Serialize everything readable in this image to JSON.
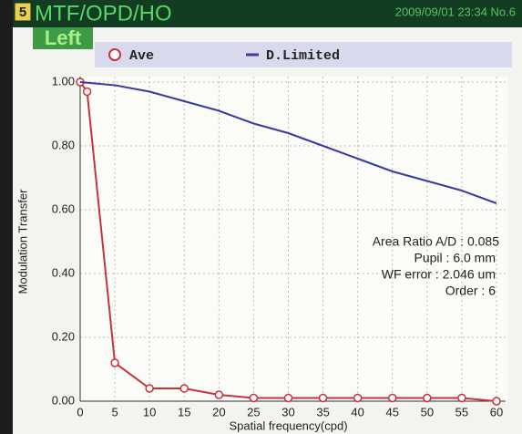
{
  "header": {
    "badge": "5",
    "title": "MTF/OPD/HO",
    "datetime": "2009/09/01 23:34 No.6",
    "eye": "Left"
  },
  "chart_data": {
    "type": "line",
    "ylabel": "Modulation Transfer",
    "xlabel": "Spatial frequency(cpd)",
    "xlim": [
      0,
      60
    ],
    "xticks": [
      0,
      5,
      10,
      15,
      20,
      25,
      30,
      35,
      40,
      45,
      50,
      55,
      60
    ],
    "ylim": [
      0,
      1
    ],
    "yticks": [
      {
        "value": 0,
        "label": "0.00"
      },
      {
        "value": 0.2,
        "label": "0.20"
      },
      {
        "value": 0.4,
        "label": "0.40"
      },
      {
        "value": 0.6,
        "label": "0.60"
      },
      {
        "value": 0.8,
        "label": "0.80"
      },
      {
        "value": 1,
        "label": "1.00"
      }
    ],
    "grid": true,
    "series": [
      {
        "name": "Ave",
        "color": "#c8323c",
        "marker": "circle",
        "x": [
          0,
          1,
          5,
          10,
          15,
          20,
          25,
          30,
          35,
          40,
          45,
          50,
          55,
          60
        ],
        "values": [
          1.0,
          0.97,
          0.12,
          0.04,
          0.04,
          0.02,
          0.01,
          0.01,
          0.01,
          0.01,
          0.01,
          0.01,
          0.01,
          0.0
        ]
      },
      {
        "name": "D.Limited",
        "color": "#3a3aa0",
        "x": [
          0,
          5,
          10,
          15,
          20,
          25,
          30,
          35,
          40,
          45,
          50,
          55,
          60
        ],
        "values": [
          1.0,
          0.99,
          0.97,
          0.94,
          0.91,
          0.87,
          0.84,
          0.8,
          0.76,
          0.72,
          0.69,
          0.66,
          0.62
        ]
      }
    ],
    "annotations": [
      "Area Ratio A/D : 0.085",
      "Pupil : 6.0 mm",
      "WF error : 2.046 um",
      "Order : 6"
    ]
  }
}
